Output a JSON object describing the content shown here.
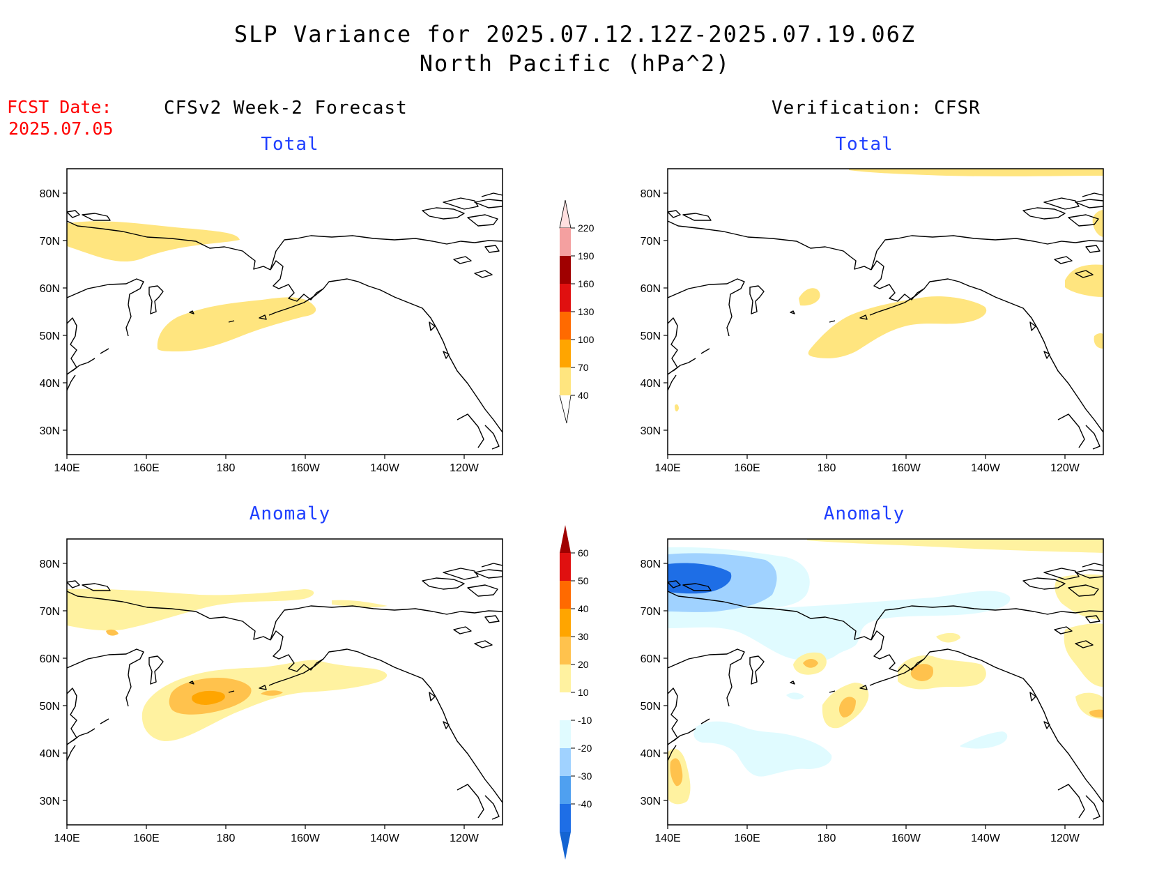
{
  "header": {
    "title_line1": "SLP Variance for 2025.07.12.12Z-2025.07.19.06Z",
    "title_line2": "North Pacific (hPa^2)"
  },
  "fcst": {
    "label": "FCST Date:",
    "date": "2025.07.05"
  },
  "columns": {
    "left": "CFSv2 Week-2 Forecast",
    "right": "Verification: CFSR"
  },
  "panels": {
    "top_left_label": "Total",
    "top_right_label": "Total",
    "bottom_left_label": "Anomaly",
    "bottom_right_label": "Anomaly"
  },
  "axes": {
    "lat_labels": [
      "80N",
      "70N",
      "60N",
      "50N",
      "40N",
      "30N"
    ],
    "lon_labels": [
      "140E",
      "160E",
      "180",
      "160W",
      "140W",
      "120W"
    ]
  },
  "colorbars": {
    "total": {
      "labels": [
        "220",
        "190",
        "160",
        "130",
        "100",
        "70",
        "40"
      ],
      "colors": [
        "#ffe0e0",
        "#f4a0a0",
        "#a00000",
        "#e01010",
        "#ff6a00",
        "#ffa500",
        "#ffe57f"
      ]
    },
    "anomaly": {
      "labels": [
        "60",
        "50",
        "40",
        "30",
        "20",
        "10",
        "-10",
        "-20",
        "-30",
        "-40"
      ],
      "colors": [
        "#a00000",
        "#e01010",
        "#ff6a00",
        "#ffa500",
        "#ffc24d",
        "#fff2a0",
        "#ffffff",
        "#e0fbff",
        "#a0d2ff",
        "#4fa0f0",
        "#1e6ee6",
        "#1464d2"
      ]
    }
  },
  "colors": {
    "title_text": "#000000",
    "fcst_text": "#ff0000",
    "panel_label_text": "#1f3fff",
    "coast": "#000000"
  }
}
